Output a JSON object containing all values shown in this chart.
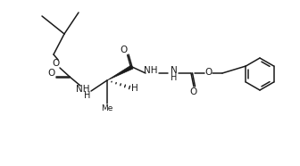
{
  "bg_color": "#ffffff",
  "line_color": "#1a1a1a",
  "lw": 1.1,
  "fig_width": 3.36,
  "fig_height": 1.86,
  "dpi": 100,
  "xlim": [
    0,
    336
  ],
  "ylim": [
    0,
    186
  ]
}
